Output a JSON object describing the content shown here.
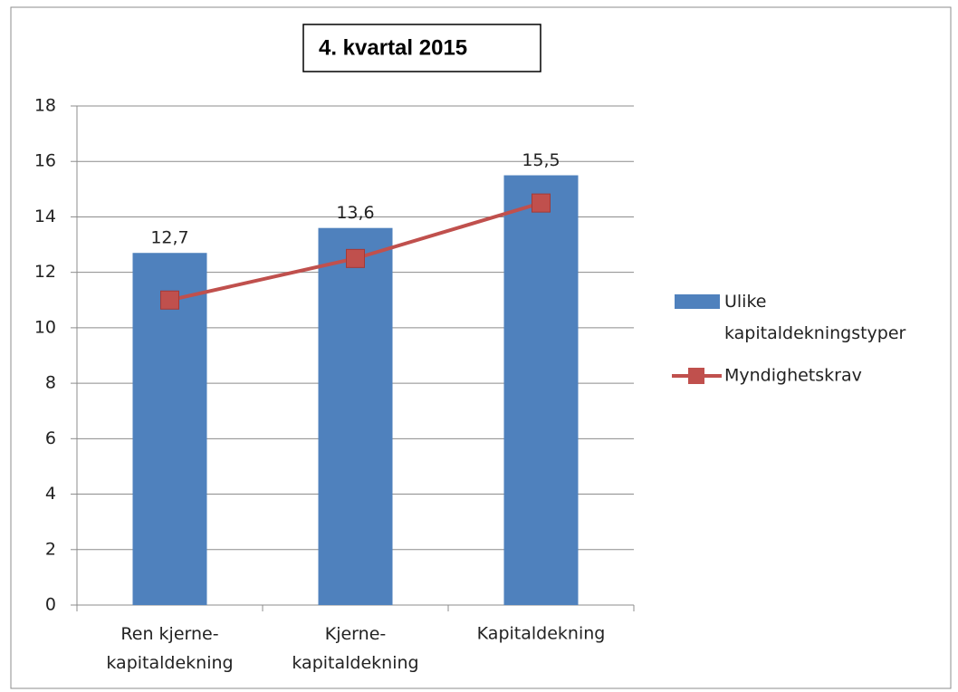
{
  "chart_data": {
    "type": "bar",
    "title": "4. kvartal 2015",
    "categories": [
      "Ren kjerne-\nkapitaldekning",
      "Kjerne-\nkapitaldekning",
      "Kapitaldekning"
    ],
    "series": [
      {
        "name": "Ulike\nkapitaldekningstyper",
        "type": "bar",
        "color": "#4f81bd",
        "values": [
          12.7,
          13.6,
          15.5
        ],
        "value_labels": [
          "12,7",
          "13,6",
          "15,5"
        ]
      },
      {
        "name": "Myndighetskrav",
        "type": "line",
        "color": "#c0504d",
        "values": [
          11,
          12.5,
          14.5
        ]
      }
    ],
    "ylim": [
      0,
      18
    ],
    "yticks": [
      0,
      2,
      4,
      6,
      8,
      10,
      12,
      14,
      16,
      18
    ],
    "grid": true,
    "legend": "right"
  }
}
